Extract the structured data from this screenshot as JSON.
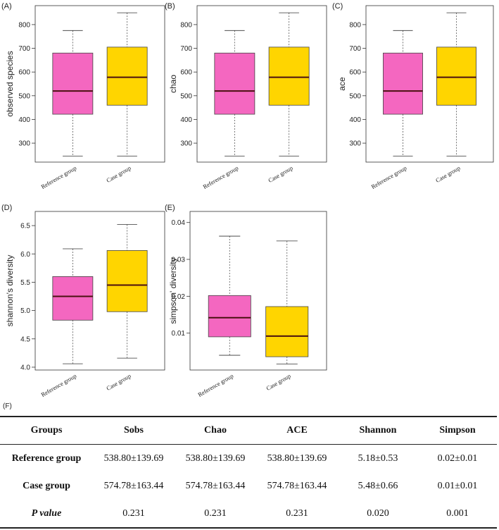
{
  "chart_data": [
    {
      "panel": "(A)",
      "type": "box",
      "ylabel": "observed species",
      "categories": [
        "Reference group",
        "Case group"
      ],
      "ylim": [
        220,
        880
      ],
      "yticks": [
        300,
        400,
        500,
        600,
        700,
        800
      ],
      "boxes": [
        {
          "min": 245,
          "q1": 422,
          "median": 520,
          "q3": 680,
          "max": 775
        },
        {
          "min": 245,
          "q1": 460,
          "median": 578,
          "q3": 705,
          "max": 850
        }
      ]
    },
    {
      "panel": "(B)",
      "type": "box",
      "ylabel": "chao",
      "categories": [
        "Reference group",
        "Case group"
      ],
      "ylim": [
        220,
        880
      ],
      "yticks": [
        300,
        400,
        500,
        600,
        700,
        800
      ],
      "boxes": [
        {
          "min": 245,
          "q1": 422,
          "median": 520,
          "q3": 680,
          "max": 775
        },
        {
          "min": 245,
          "q1": 460,
          "median": 578,
          "q3": 705,
          "max": 850
        }
      ]
    },
    {
      "panel": "(C)",
      "type": "box",
      "ylabel": "ace",
      "categories": [
        "Reference group",
        "Case group"
      ],
      "ylim": [
        220,
        880
      ],
      "yticks": [
        300,
        400,
        500,
        600,
        700,
        800
      ],
      "boxes": [
        {
          "min": 245,
          "q1": 422,
          "median": 520,
          "q3": 680,
          "max": 775
        },
        {
          "min": 245,
          "q1": 460,
          "median": 578,
          "q3": 705,
          "max": 850
        }
      ]
    },
    {
      "panel": "(D)",
      "type": "box",
      "ylabel": "shannon's diversity",
      "categories": [
        "Reference group",
        "Case group"
      ],
      "ylim": [
        3.95,
        6.75
      ],
      "yticks": [
        4.0,
        4.5,
        5.0,
        5.5,
        6.0,
        6.5
      ],
      "tick_decimals": 1,
      "boxes": [
        {
          "min": 4.06,
          "q1": 4.83,
          "median": 5.25,
          "q3": 5.6,
          "max": 6.09
        },
        {
          "min": 4.16,
          "q1": 4.98,
          "median": 5.45,
          "q3": 6.06,
          "max": 6.52
        }
      ]
    },
    {
      "panel": "(E)",
      "type": "box",
      "ylabel": "simpson' diversity",
      "categories": [
        "Reference group",
        "Case group"
      ],
      "ylim": [
        0.0,
        0.043
      ],
      "yticks": [
        0.01,
        0.02,
        0.03,
        0.04
      ],
      "tick_decimals": 2,
      "boxes": [
        {
          "min": 0.004,
          "q1": 0.009,
          "median": 0.0142,
          "q3": 0.0202,
          "max": 0.0363
        },
        {
          "min": 0.0016,
          "q1": 0.0036,
          "median": 0.0092,
          "q3": 0.0172,
          "max": 0.035
        }
      ]
    }
  ],
  "colors": {
    "reference": "#f467c0",
    "case": "#ffd500",
    "median": "#4a1010",
    "whisker": "#555555"
  },
  "table": {
    "label": "(F)",
    "headers": [
      "Groups",
      "Sobs",
      "Chao",
      "ACE",
      "Shannon",
      "Simpson"
    ],
    "rows": [
      [
        "Reference group",
        "538.80±139.69",
        "538.80±139.69",
        "538.80±139.69",
        "5.18±0.53",
        "0.02±0.01"
      ],
      [
        "Case group",
        "574.78±163.44",
        "574.78±163.44",
        "574.78±163.44",
        "5.48±0.66",
        "0.01±0.01"
      ],
      [
        "P value",
        "0.231",
        "0.231",
        "0.231",
        "0.020",
        "0.001"
      ]
    ]
  }
}
